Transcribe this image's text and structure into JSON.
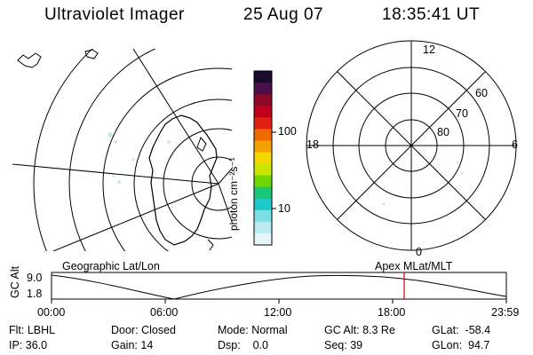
{
  "header": {
    "instrument": "Ultraviolet Imager",
    "date": "25 Aug 07",
    "time": "18:35:41 UT"
  },
  "left_map": {
    "label": "Geographic Lat/Lon"
  },
  "right_map": {
    "label": "Apex MLat/MLT",
    "mlt_labels": {
      "top": "12",
      "left": "18",
      "right": "6",
      "bottom": "0"
    },
    "mlat_labels": [
      "60",
      "70",
      "80"
    ]
  },
  "colorbar": {
    "unit_label": "photon cm⁻²s⁻¹",
    "ticks": [
      "100",
      "10"
    ],
    "colors": [
      "#1a0a2e",
      "#4b0f4f",
      "#8b0a2a",
      "#c0001a",
      "#e02010",
      "#f06a00",
      "#f4a000",
      "#f3d800",
      "#c8e800",
      "#70d800",
      "#18c878",
      "#20c8c8",
      "#7cdfe6",
      "#b9ebf0",
      "#e6f6f8"
    ]
  },
  "altitude_plot": {
    "ylabel": "GC Alt",
    "y_ticks": [
      "9.0",
      "1.8"
    ],
    "x_ticks": [
      "00:00",
      "06:00",
      "12:00",
      "18:00",
      "23:59"
    ],
    "current_time_marker": "18:35",
    "marker_color": "#cc0000"
  },
  "status": {
    "flt": {
      "label": "Flt:",
      "value": "LBHL"
    },
    "ip": {
      "label": "IP:",
      "value": "36.0"
    },
    "door": {
      "label": "Door:",
      "value": "Closed"
    },
    "gain": {
      "label": "Gain:",
      "value": "14"
    },
    "mode": {
      "label": "Mode:",
      "value": "Normal"
    },
    "dsp": {
      "label": "Dsp:",
      "value": "0.0"
    },
    "gcalt": {
      "label": "GC Alt:",
      "value": "8.3 Re"
    },
    "seq": {
      "label": "Seq:",
      "value": "39"
    },
    "glat": {
      "label": "GLat:",
      "value": "-58.4"
    },
    "glon": {
      "label": "GLon:",
      "value": "94.7"
    }
  }
}
